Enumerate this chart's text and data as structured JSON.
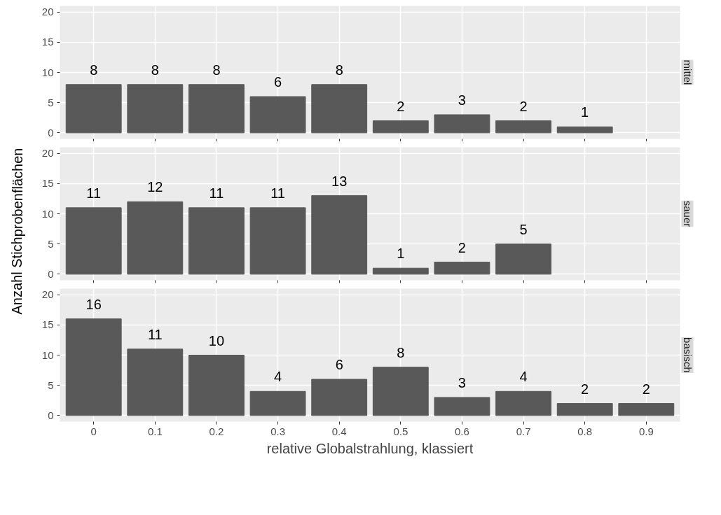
{
  "chart_data": [
    {
      "type": "bar",
      "title": "mittel",
      "categories": [
        "0",
        "0.1",
        "0.2",
        "0.3",
        "0.4",
        "0.5",
        "0.6",
        "0.7",
        "0.8",
        "0.9"
      ],
      "values": [
        8,
        8,
        8,
        6,
        8,
        2,
        3,
        2,
        1,
        null
      ],
      "color": "#595959",
      "ylim": [
        -1,
        21
      ],
      "yticks": [
        0,
        5,
        10,
        15,
        20
      ],
      "grid": true,
      "data_labels": true,
      "tick_labels": "y"
    },
    {
      "type": "bar",
      "title": "sauer",
      "ylabel": "Anzahl Stichprobenflächen",
      "categories": [
        "0",
        "0.1",
        "0.2",
        "0.3",
        "0.4",
        "0.5",
        "0.6",
        "0.7",
        "0.8",
        "0.9"
      ],
      "values": [
        11,
        12,
        11,
        11,
        13,
        1,
        2,
        5,
        null,
        null
      ],
      "color": "#595959",
      "ylim": [
        -1,
        21
      ],
      "yticks": [
        0,
        5,
        10,
        15,
        20
      ],
      "grid": true,
      "data_labels": true,
      "tick_labels": "y"
    },
    {
      "type": "bar",
      "title": "basisch",
      "xlabel": "relative Globalstrahlung, klassiert",
      "categories": [
        "0",
        "0.1",
        "0.2",
        "0.3",
        "0.4",
        "0.5",
        "0.6",
        "0.7",
        "0.8",
        "0.9"
      ],
      "values": [
        16,
        11,
        10,
        4,
        6,
        8,
        3,
        4,
        2,
        2
      ],
      "color": "#595959",
      "ylim": [
        -1,
        21
      ],
      "yticks": [
        0,
        5,
        10,
        15,
        20
      ],
      "grid": true,
      "data_labels": true
    }
  ]
}
